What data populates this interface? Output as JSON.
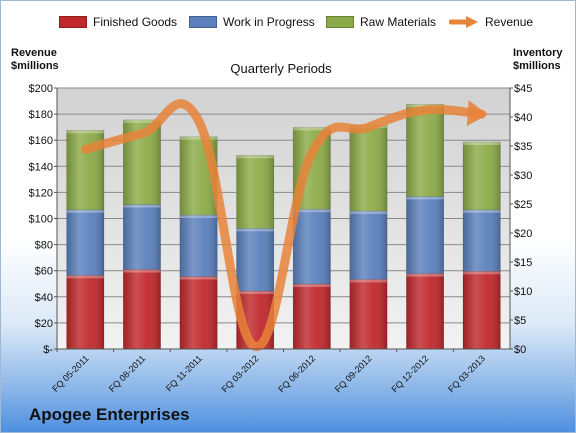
{
  "chart_data": {
    "type": "bar",
    "stacked": true,
    "title": "Quarterly Periods",
    "company": "Apogee Enterprises",
    "left_axis_label": [
      "Revenue",
      "$millions"
    ],
    "right_axis_label": [
      "Inventory",
      "$millions"
    ],
    "categories": [
      "FQ 05-2011",
      "FQ 08-2011",
      "FQ 11-2011",
      "FQ 03-2012",
      "FQ 06-2012",
      "FQ 09-2012",
      "FQ 12-2012",
      "FQ 03-2013"
    ],
    "series": [
      {
        "name": "Finished Goods",
        "axis": "right",
        "color": "#c0282c",
        "values": [
          12.7,
          13.7,
          12.5,
          10.0,
          11.2,
          12.0,
          13.0,
          13.4
        ]
      },
      {
        "name": "Work in Progress",
        "axis": "right",
        "color": "#5b80bd",
        "values": [
          11.3,
          11.2,
          10.6,
          10.8,
          12.9,
          11.8,
          13.3,
          10.6
        ]
      },
      {
        "name": "Raw Materials",
        "axis": "right",
        "color": "#8cab48",
        "values": [
          13.7,
          14.6,
          13.5,
          12.6,
          14.1,
          14.8,
          15.9,
          11.7
        ]
      },
      {
        "name": "Revenue",
        "axis": "left",
        "type": "line",
        "color": "#e8833a",
        "values": [
          153,
          165,
          175,
          2,
          150,
          170,
          183,
          180
        ]
      }
    ],
    "left_ticks": [
      "$-",
      "$20",
      "$40",
      "$60",
      "$80",
      "$100",
      "$120",
      "$140",
      "$160",
      "$180",
      "$200"
    ],
    "right_ticks": [
      "$0",
      "$5",
      "$10",
      "$15",
      "$20",
      "$25",
      "$30",
      "$35",
      "$40",
      "$45"
    ],
    "ylim_left": [
      0,
      200
    ],
    "ylim_right": [
      0,
      45
    ],
    "grid": true,
    "legend_position": "top"
  }
}
